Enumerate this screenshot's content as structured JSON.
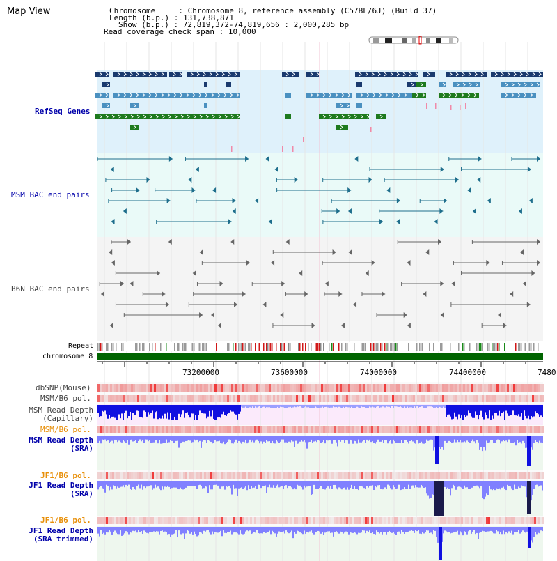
{
  "title": "Map View",
  "info": {
    "chromosome_label": "Chromosome",
    "chromosome_value": "Chromosome 8, reference assembly (C57BL/6J) (Build 37)",
    "length_label": "Length (b.p.)",
    "length_value": "131,738,871",
    "show_label": "Show (b.p.)",
    "show_value": "72,819,372-74,819,656 : 2,000,285 bp",
    "coverage_label": "Read coverage check span",
    "coverage_value": "10,000"
  },
  "tracks": {
    "refseq": "RefSeq Genes",
    "msm_bac": "MSM BAC end pairs",
    "b6n_bac": "B6N BAC end pairs",
    "repeat": "Repeat",
    "chromosome": "chromosome 8",
    "dbsnp": "dbSNP(Mouse)",
    "msm_b6_pol": "MSM/B6 pol.",
    "msm_depth_cap_1": "MSM Read Depth",
    "msm_depth_cap_2": "(Capillary)",
    "msm_b6_pol_2": "MSM/B6 pol.",
    "msm_depth_sra_1": "MSM Read Depth",
    "msm_depth_sra_2": "(SRA)",
    "jf1_b6_pol": "JF1/B6 pol.",
    "jf1_depth_sra_1": "JF1 Read Depth",
    "jf1_depth_sra_2": "(SRA)",
    "jf1_b6_pol_2": "JF1/B6 pol.",
    "jf1_depth_trim_1": "JF1 Read Depth",
    "jf1_depth_trim_2": "(SRA trimmed)"
  },
  "axis_ticks": [
    "73200000",
    "73600000",
    "74000000",
    "74400000",
    "7480"
  ],
  "colors": {
    "refseq_dark": "#1a3a6e",
    "refseq_mid": "#4a90c0",
    "refseq_green": "#1e7a1e",
    "bac_msm": "#1e6e8c",
    "bac_b6n": "#666666",
    "depth_blue": "#1010e0",
    "depth_light": "#8080ff",
    "pol_red": "#e03030",
    "chromosome_green": "#006400"
  }
}
